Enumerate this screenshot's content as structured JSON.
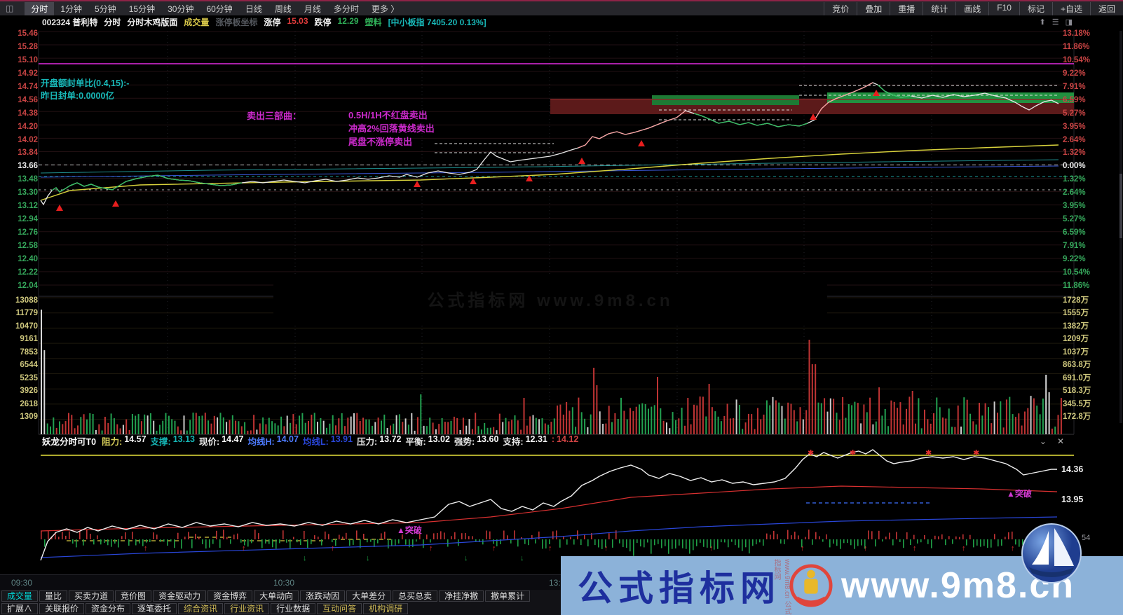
{
  "top_menu": {
    "window_icon": "◫",
    "left_items": [
      {
        "t": "分时",
        "c": "#ffffff",
        "sel": true
      },
      {
        "t": "1分钟",
        "c": "#cfcfcf"
      },
      {
        "t": "5分钟",
        "c": "#cfcfcf"
      },
      {
        "t": "15分钟",
        "c": "#cfcfcf"
      },
      {
        "t": "30分钟",
        "c": "#cfcfcf"
      },
      {
        "t": "60分钟",
        "c": "#cfcfcf"
      },
      {
        "t": "日线",
        "c": "#cfcfcf"
      },
      {
        "t": "周线",
        "c": "#cfcfcf"
      },
      {
        "t": "月线",
        "c": "#cfcfcf"
      },
      {
        "t": "多分时",
        "c": "#cfcfcf"
      },
      {
        "t": "更多 〉",
        "c": "#cfcfcf"
      }
    ],
    "right_items": [
      "竞价",
      "叠加",
      "重播",
      "统计",
      "画线",
      "F10",
      "标记",
      "+自选",
      "返回"
    ]
  },
  "info_bar": {
    "segments": [
      {
        "t": "002324 普利特",
        "c": "#ededed"
      },
      {
        "t": "分时",
        "c": "#ededed"
      },
      {
        "t": "分时木鸡版面",
        "c": "#ededed"
      },
      {
        "t": "成交量",
        "c": "#d8c84a"
      },
      {
        "t": "涨停板坐标",
        "c": "#54585e"
      },
      {
        "t": "涨停",
        "c": "#ededed"
      },
      {
        "t": "15.03",
        "c": "#e23c3c"
      },
      {
        "t": "跌停",
        "c": "#ededed"
      },
      {
        "t": "12.29",
        "c": "#2fae57"
      },
      {
        "t": "塑料",
        "c": "#2fae57"
      },
      {
        "t": "[中小板指 7405.20 0.13%]",
        "c": "#18b8b8"
      }
    ],
    "icons": [
      "⬆",
      "☰",
      "◨"
    ]
  },
  "price_axis_left": [
    {
      "t": "15.46",
      "c": "#c94444"
    },
    {
      "t": "15.28",
      "c": "#c94444"
    },
    {
      "t": "15.10",
      "c": "#c94444"
    },
    {
      "t": "14.92",
      "c": "#c94444"
    },
    {
      "t": "14.74",
      "c": "#c94444"
    },
    {
      "t": "14.56",
      "c": "#c94444"
    },
    {
      "t": "14.38",
      "c": "#c94444"
    },
    {
      "t": "14.20",
      "c": "#c94444"
    },
    {
      "t": "14.02",
      "c": "#c94444"
    },
    {
      "t": "13.84",
      "c": "#c94444"
    },
    {
      "t": "13.66",
      "c": "#f0f0f0"
    },
    {
      "t": "13.48",
      "c": "#36a85c"
    },
    {
      "t": "13.30",
      "c": "#36a85c"
    },
    {
      "t": "13.12",
      "c": "#36a85c"
    },
    {
      "t": "12.94",
      "c": "#36a85c"
    },
    {
      "t": "12.76",
      "c": "#36a85c"
    },
    {
      "t": "12.58",
      "c": "#36a85c"
    },
    {
      "t": "12.40",
      "c": "#36a85c"
    },
    {
      "t": "12.22",
      "c": "#36a85c"
    },
    {
      "t": "12.04",
      "c": "#36a85c"
    }
  ],
  "price_axis_right": [
    {
      "t": "13.18%",
      "c": "#c94444"
    },
    {
      "t": "11.86%",
      "c": "#c94444"
    },
    {
      "t": "10.54%",
      "c": "#c94444"
    },
    {
      "t": "9.22%",
      "c": "#c94444"
    },
    {
      "t": "7.91%",
      "c": "#c94444"
    },
    {
      "t": "6.59%",
      "c": "#c94444"
    },
    {
      "t": "5.27%",
      "c": "#c94444"
    },
    {
      "t": "3.95%",
      "c": "#c94444"
    },
    {
      "t": "2.64%",
      "c": "#c94444"
    },
    {
      "t": "1.32%",
      "c": "#c94444"
    },
    {
      "t": "0.00%",
      "c": "#f0f0f0"
    },
    {
      "t": "1.32%",
      "c": "#36a85c"
    },
    {
      "t": "2.64%",
      "c": "#36a85c"
    },
    {
      "t": "3.95%",
      "c": "#36a85c"
    },
    {
      "t": "5.27%",
      "c": "#36a85c"
    },
    {
      "t": "6.59%",
      "c": "#36a85c"
    },
    {
      "t": "7.91%",
      "c": "#36a85c"
    },
    {
      "t": "9.22%",
      "c": "#36a85c"
    },
    {
      "t": "10.54%",
      "c": "#36a85c"
    },
    {
      "t": "11.86%",
      "c": "#36a85c"
    }
  ],
  "volume_axis_left": [
    "13088",
    "11779",
    "10470",
    "9161",
    "7853",
    "6544",
    "5235",
    "3926",
    "2618",
    "1309"
  ],
  "volume_axis_right": [
    "1728万",
    "1555万",
    "1382万",
    "1209万",
    "1037万",
    "863.8万",
    "691.0万",
    "518.3万",
    "345.5万",
    "172.8万"
  ],
  "annotations": {
    "open_ratio": "开盘额封单比(0.4,15):-",
    "prev_seal": "昨日封单:0.0000亿",
    "sell_title": "卖出三部曲：",
    "sell_line1": "0.5H/1H不红盘卖出",
    "sell_line2": "冲高2%回落黄线卖出",
    "sell_line3": "尾盘不涨停卖出",
    "watermark_box": "公式指标网 www.9m8.cn"
  },
  "indicator_panel": {
    "title": "妖龙分时可T0",
    "fields": [
      {
        "l": "阻力:",
        "v": "14.57",
        "lc": "#d8cf5a",
        "vc": "#f0f0f0"
      },
      {
        "l": "支撑:",
        "v": "13.13",
        "lc": "#15b5b5",
        "vc": "#15b5b5"
      },
      {
        "l": "现价:",
        "v": "14.47",
        "lc": "#f0f0f0",
        "vc": "#ffffff"
      },
      {
        "l": "均线H:",
        "v": "14.07",
        "lc": "#4d7bff",
        "vc": "#4d7bff"
      },
      {
        "l": "均线L:",
        "v": "13.91",
        "lc": "#2946d8",
        "vc": "#2946d8"
      },
      {
        "l": "压力:",
        "v": "13.72",
        "lc": "#e6e6e6",
        "vc": "#f5f5f5"
      },
      {
        "l": "平衡:",
        "v": "13.02",
        "lc": "#e6e6e6",
        "vc": "#f5f5f5"
      },
      {
        "l": "强势:",
        "v": "13.60",
        "lc": "#e6e6e6",
        "vc": "#f5f5f5"
      },
      {
        "l": "支持:",
        "v": "12.31",
        "lc": "#e6e6e6",
        "vc": "#f5f5f5"
      },
      {
        "l": ":",
        "v": "14.12",
        "lc": "#d04343",
        "vc": "#d04343"
      }
    ],
    "collapse_icon": "⌄",
    "close_icon": "✕",
    "label_high": "14.36",
    "label_mid": "13.95",
    "small_value": "54",
    "breakout": "▲突破",
    "markers": {
      "up": "↑",
      "down": "↓",
      "star": "✱"
    }
  },
  "time_axis": {
    "t1": "09:30",
    "t2": "10:30",
    "t3": "13:0"
  },
  "bottom_tabs_row1": [
    {
      "t": "成交量",
      "c": "#00d8d8"
    },
    {
      "t": "量比",
      "c": "#dedede"
    },
    {
      "t": "买卖力道",
      "c": "#dedede"
    },
    {
      "t": "竞价图",
      "c": "#dedede"
    },
    {
      "t": "资金驱动力",
      "c": "#dedede"
    },
    {
      "t": "资金博弈",
      "c": "#dedede"
    },
    {
      "t": "大单动向",
      "c": "#dedede"
    },
    {
      "t": "涨跌动因",
      "c": "#dedede"
    },
    {
      "t": "大单差分",
      "c": "#dedede"
    },
    {
      "t": "总买总卖",
      "c": "#dedede"
    },
    {
      "t": "净挂净撤",
      "c": "#dedede"
    },
    {
      "t": "撤单累计",
      "c": "#dedede"
    }
  ],
  "bottom_tabs_row2": [
    {
      "t": "扩展∧",
      "c": "#dedede"
    },
    {
      "t": "关联报价",
      "c": "#dedede"
    },
    {
      "t": "资金分布",
      "c": "#dedede"
    },
    {
      "t": "逐笔委托",
      "c": "#dedede"
    },
    {
      "t": "综合资讯",
      "c": "#cdb855"
    },
    {
      "t": "行业资讯",
      "c": "#cdb855"
    },
    {
      "t": "行业数据",
      "c": "#dedede"
    },
    {
      "t": "互动问答",
      "c": "#cdb855"
    },
    {
      "t": "机构调研",
      "c": "#cdb855"
    }
  ],
  "watermark": {
    "site_name": "公式指标网",
    "url": "www.9m8.cn",
    "vertical": "www.9m8.cn 公式指标网"
  }
}
